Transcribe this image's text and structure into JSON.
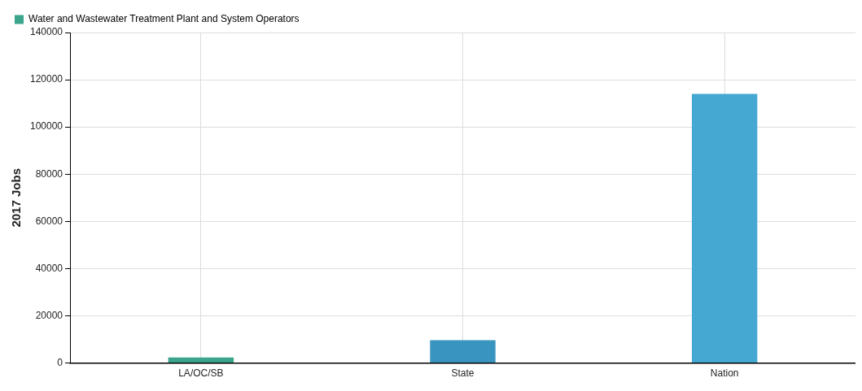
{
  "chart_data": {
    "type": "bar",
    "ylabel": "2017 Jobs",
    "categories": [
      "LA/OC/SB",
      "State",
      "Nation"
    ],
    "series": [
      {
        "name": "Water and Wastewater Treatment Plant and System Operators",
        "color": "#3aa58a",
        "colors": [
          "#3aa58a",
          "#3a94c0",
          "#45a8d2"
        ],
        "values": [
          2400,
          9700,
          114000
        ]
      }
    ],
    "ylim": [
      0,
      140000
    ],
    "yticks": [
      0,
      20000,
      40000,
      60000,
      80000,
      100000,
      120000,
      140000
    ],
    "grid": true,
    "legend": "top left"
  }
}
